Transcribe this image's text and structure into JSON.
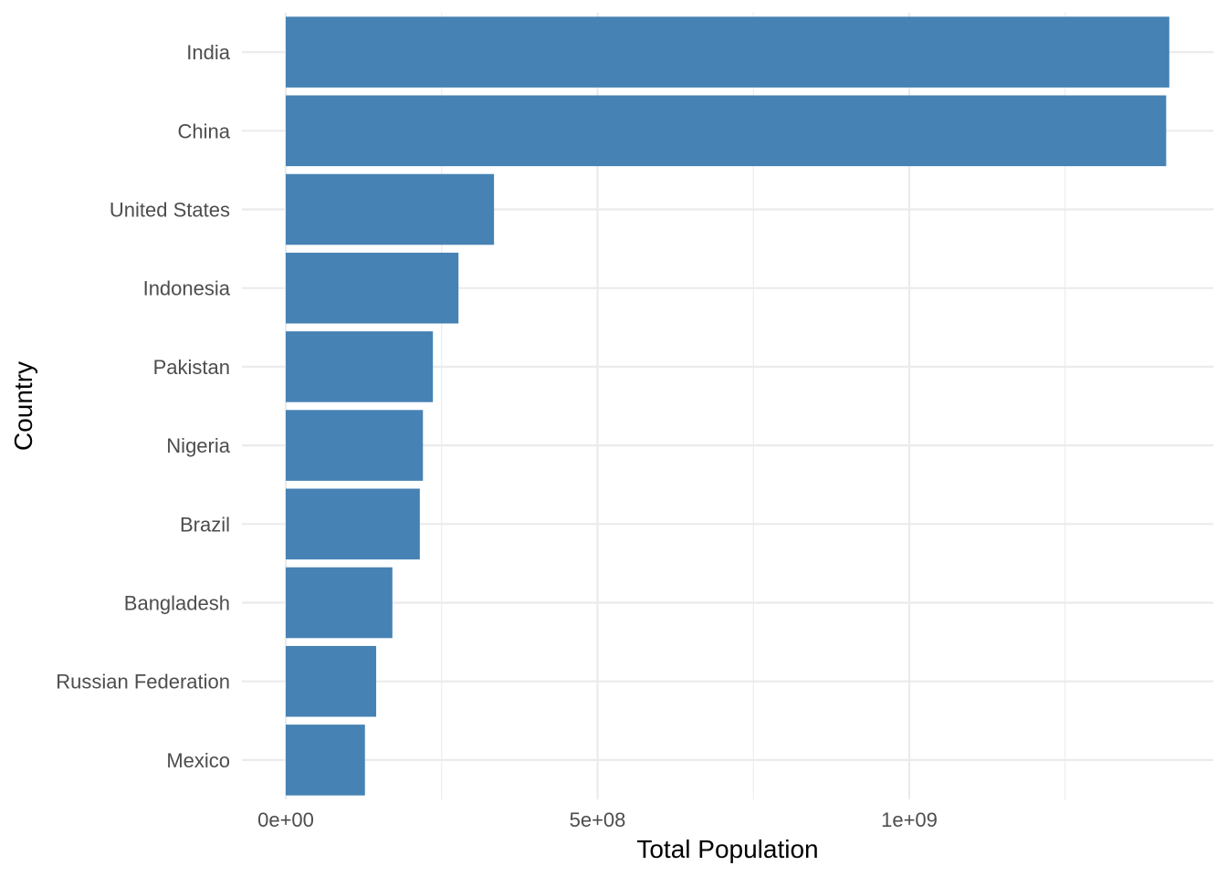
{
  "chart_data": {
    "type": "bar",
    "orientation": "horizontal",
    "title": "",
    "xlabel": "Total Population",
    "ylabel": "Country",
    "categories": [
      "India",
      "China",
      "United States",
      "Indonesia",
      "Pakistan",
      "Nigeria",
      "Brazil",
      "Bangladesh",
      "Russian Federation",
      "Mexico"
    ],
    "values": [
      1417000000,
      1412000000,
      334000000,
      277000000,
      236000000,
      220000000,
      215000000,
      171000000,
      145000000,
      127000000
    ],
    "x_ticks": [
      0,
      500000000,
      1000000000
    ],
    "x_tick_labels": [
      "0e+00",
      "5e+08",
      "1e+09"
    ],
    "xlim": [
      -70000000,
      1487000000
    ],
    "grid": true,
    "legend": "none",
    "bar_color": "#4682b4"
  }
}
